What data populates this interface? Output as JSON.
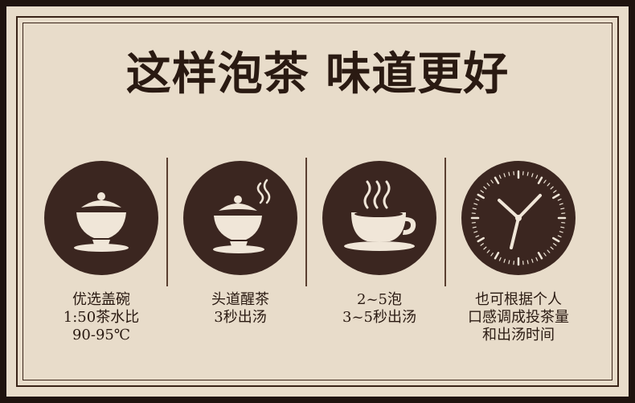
{
  "title": "这样泡茶 味道更好",
  "steps": [
    {
      "icon": "gaiwan-icon",
      "lines": [
        "优选盖碗",
        "1:50茶水比",
        "90-95℃"
      ]
    },
    {
      "icon": "steaming-gaiwan-icon",
      "lines": [
        "头道醒茶",
        "3秒出汤"
      ]
    },
    {
      "icon": "tea-cup-icon",
      "lines": [
        "2~5泡",
        "3~5秒出汤"
      ]
    },
    {
      "icon": "clock-icon",
      "lines": [
        "也可根据个人",
        "口感调成投茶量",
        "和出汤时间"
      ]
    }
  ],
  "colors": {
    "background": "#e8dcca",
    "dark": "#3b2620",
    "icon": "#f0e6d8",
    "text": "#2a1a12"
  }
}
